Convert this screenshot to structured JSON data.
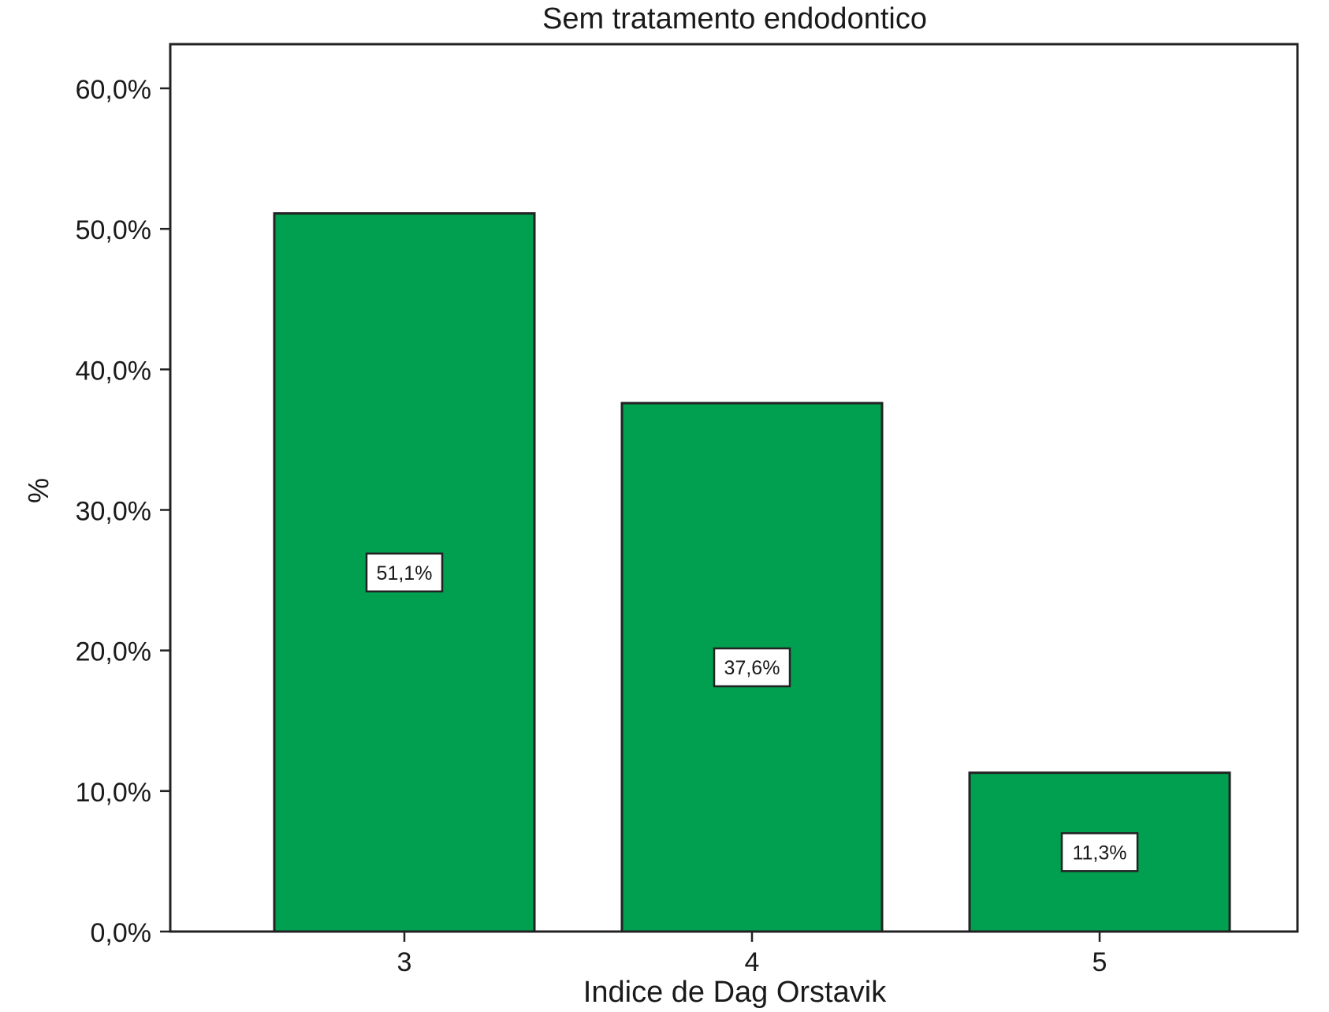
{
  "chart_data": {
    "type": "bar",
    "title": "Sem tratamento endodontico",
    "xlabel": "Indice de Dag Orstavik",
    "ylabel": "%",
    "categories": [
      "3",
      "4",
      "5"
    ],
    "values": [
      51.1,
      37.6,
      11.3
    ],
    "data_labels": [
      "51,1%",
      "37,6%",
      "11,3%"
    ],
    "ylim": [
      0,
      60
    ],
    "yticks": [
      0,
      10,
      20,
      30,
      40,
      50,
      60
    ],
    "ytick_labels": [
      "0,0%",
      "10,0%",
      "20,0%",
      "30,0%",
      "40,0%",
      "50,0%",
      "60,0%"
    ],
    "bar_color": "#00a050",
    "grid": false,
    "legend": "none"
  }
}
